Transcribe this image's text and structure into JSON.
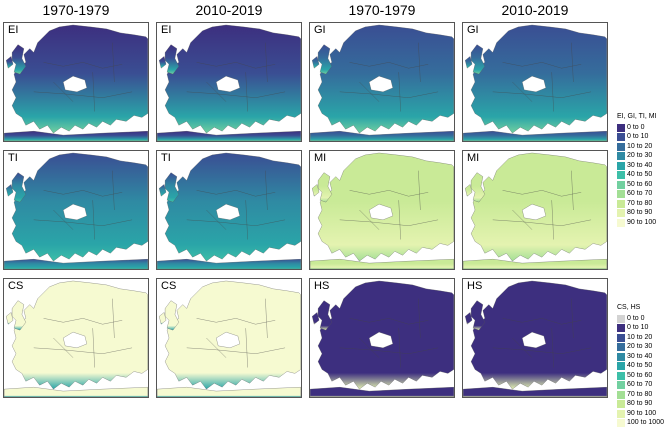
{
  "column_headers": [
    "1970-1979",
    "2010-2019",
    "1970-1979",
    "2010-2019"
  ],
  "panels": [
    {
      "label": "EI",
      "scheme": "EI"
    },
    {
      "label": "EI",
      "scheme": "EI"
    },
    {
      "label": "GI",
      "scheme": "GI"
    },
    {
      "label": "GI",
      "scheme": "GI"
    },
    {
      "label": "TI",
      "scheme": "TI"
    },
    {
      "label": "TI",
      "scheme": "TI"
    },
    {
      "label": "MI",
      "scheme": "MI"
    },
    {
      "label": "MI",
      "scheme": "MI"
    },
    {
      "label": "CS",
      "scheme": "CS"
    },
    {
      "label": "CS",
      "scheme": "CS"
    },
    {
      "label": "HS",
      "scheme": "HS"
    },
    {
      "label": "HS",
      "scheme": "HS"
    }
  ],
  "legend_top": {
    "title": "EI, GI, TI, MI",
    "entries": [
      {
        "label": "0 to 0",
        "color": "#3d2f7f"
      },
      {
        "label": "0 to 10",
        "color": "#3a4e93"
      },
      {
        "label": "10 to 20",
        "color": "#356d9c"
      },
      {
        "label": "20 to 30",
        "color": "#2f8aa3"
      },
      {
        "label": "30 to 40",
        "color": "#2aa5a8"
      },
      {
        "label": "40 to 50",
        "color": "#3dbfa8"
      },
      {
        "label": "50 to 60",
        "color": "#72d0a0"
      },
      {
        "label": "60 to 70",
        "color": "#a3df95"
      },
      {
        "label": "70 to 80",
        "color": "#c9ea97"
      },
      {
        "label": "80 to 90",
        "color": "#e4f3b0"
      },
      {
        "label": "90 to 100",
        "color": "#f6fad1"
      }
    ]
  },
  "legend_bottom": {
    "title": "CS, HS",
    "entries": [
      {
        "label": "0 to 0",
        "color": "#d3d3d3"
      },
      {
        "label": "0 to 10",
        "color": "#3d2f7f"
      },
      {
        "label": "10 to 20",
        "color": "#3a4e93"
      },
      {
        "label": "20 to 30",
        "color": "#356d9c"
      },
      {
        "label": "30 to 40",
        "color": "#2f8aa3"
      },
      {
        "label": "40 to 50",
        "color": "#2aa5a8"
      },
      {
        "label": "50 to 60",
        "color": "#3dbfa8"
      },
      {
        "label": "60 to 70",
        "color": "#72d0a0"
      },
      {
        "label": "70 to 80",
        "color": "#a3df95"
      },
      {
        "label": "80 to 90",
        "color": "#c9ea97"
      },
      {
        "label": "90 to 100",
        "color": "#e4f3b0"
      },
      {
        "label": "100 to 1000",
        "color": "#f6fad1"
      }
    ]
  },
  "scheme_colors": {
    "EI": {
      "north": "#3d2f7f",
      "mid": "#3a4e93",
      "south": "#2aa5a8",
      "coast": "#72d0a0"
    },
    "GI": {
      "north": "#3a4e93",
      "mid": "#356d9c",
      "south": "#2aa5a8",
      "coast": "#72d0a0"
    },
    "TI": {
      "north": "#3a4e93",
      "mid": "#2f8aa3",
      "south": "#2aa5a8",
      "coast": "#3dbfa8"
    },
    "MI": {
      "north": "#c9ea97",
      "mid": "#c9ea97",
      "south": "#e4f3b0",
      "coast": "#a3df95"
    },
    "CS": {
      "north": "#f6fad1",
      "mid": "#f6fad1",
      "south": "#f6fad1",
      "coast": "#2aa5a8"
    },
    "HS": {
      "north": "#3d2f7f",
      "mid": "#3d2f7f",
      "south": "#3d2f7f",
      "coast": "#e4f3b0"
    }
  }
}
